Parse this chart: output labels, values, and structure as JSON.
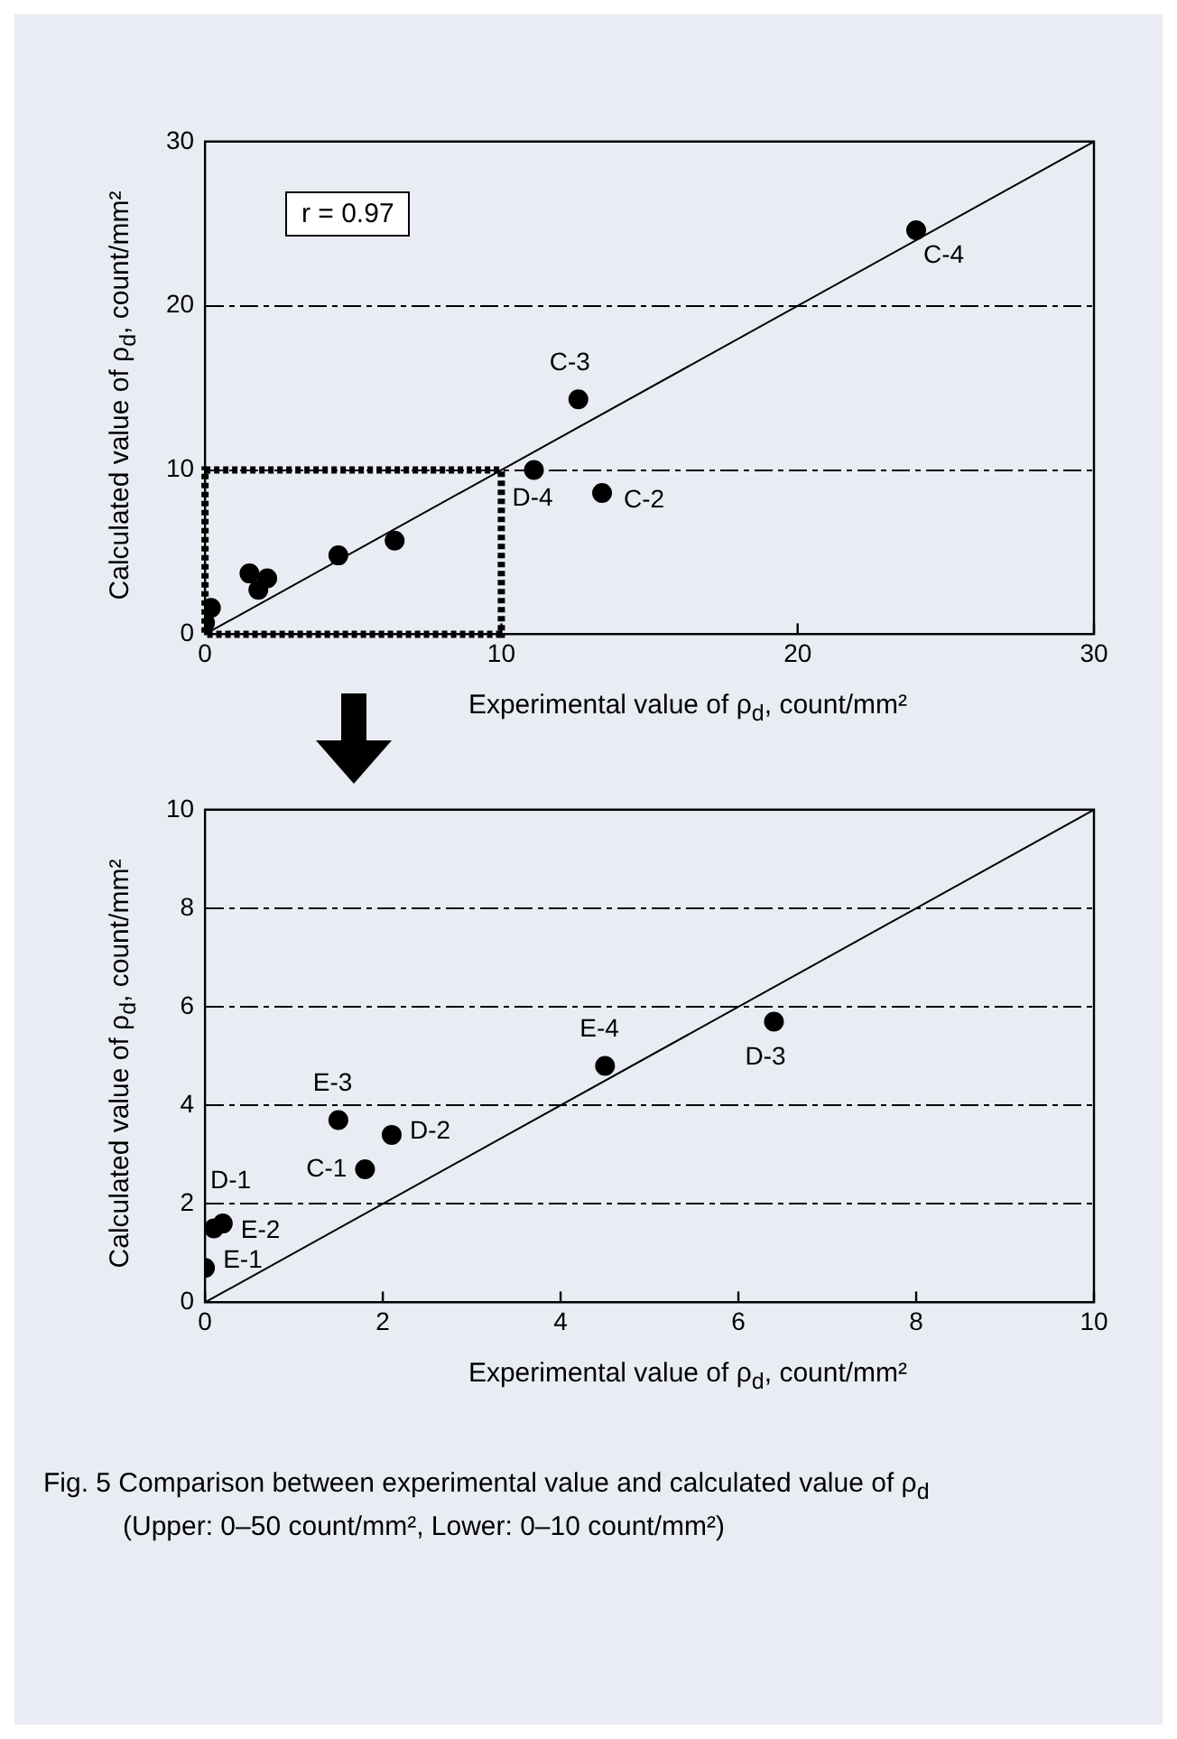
{
  "chart_data": [
    {
      "type": "scatter",
      "xlabel": "Experimental value of ρ$_{d}$, count/mm²",
      "ylabel": "Calculated value of ρ$_{d}$, count/mm²",
      "xlim": [
        0,
        30
      ],
      "ylim": [
        0,
        30
      ],
      "xticks": [
        0,
        10,
        20,
        30
      ],
      "yticks": [
        0,
        10,
        20,
        30
      ],
      "grid": "y",
      "legend": false,
      "marker": "circle",
      "series": [
        {
          "color": "#000000",
          "x": [
            0,
            0.2,
            1.8,
            1.5,
            2.1,
            4.5,
            6.4,
            11.1,
            13.4,
            12.6,
            24
          ],
          "values": [
            0.7,
            1.6,
            2.7,
            3.7,
            3.4,
            4.8,
            5.7,
            10,
            8.6,
            14.3,
            24.6
          ]
        },
        {
          "type": "line",
          "color": "#000000",
          "marker": "none",
          "x": [
            0,
            30
          ],
          "values": [
            0,
            30
          ]
        }
      ],
      "annotations": [
        "r = 0.97",
        {
          "text": "D-4",
          "x": 11.1,
          "y": 10
        },
        {
          "text": "C-2",
          "x": 13.4,
          "y": 8.6
        },
        {
          "text": "C-3",
          "x": 12.6,
          "y": 14.3
        },
        {
          "text": "C-4",
          "x": 24,
          "y": 24.6
        }
      ]
    },
    {
      "type": "scatter",
      "xlabel": "Experimental value of ρ$_{d}$, count/mm²",
      "ylabel": "Calculated value of ρ$_{d}$, count/mm²",
      "xlim": [
        0,
        10
      ],
      "ylim": [
        0,
        10
      ],
      "xticks": [
        0,
        2,
        4,
        6,
        8,
        10
      ],
      "yticks": [
        0,
        2,
        4,
        6,
        8,
        10
      ],
      "grid": "y",
      "legend": false,
      "marker": "circle",
      "series": [
        {
          "color": "#000000",
          "x": [
            0,
            0.1,
            0.2,
            1.8,
            1.5,
            2.1,
            4.5,
            6.4
          ],
          "values": [
            0.7,
            1.5,
            1.6,
            2.7,
            3.7,
            3.4,
            4.8,
            5.7
          ]
        },
        {
          "type": "line",
          "color": "#000000",
          "marker": "none",
          "x": [
            0,
            10
          ],
          "values": [
            0,
            10
          ]
        }
      ],
      "annotations": [
        {
          "text": "E-1",
          "x": 0,
          "y": 0.7
        },
        {
          "text": "D-1",
          "x": 0.1,
          "y": 1.5
        },
        {
          "text": "E-2",
          "x": 0.2,
          "y": 1.6
        },
        {
          "text": "C-1",
          "x": 1.8,
          "y": 2.7
        },
        {
          "text": "E-3",
          "x": 1.5,
          "y": 3.7
        },
        {
          "text": "D-2",
          "x": 2.1,
          "y": 3.4
        },
        {
          "text": "E-4",
          "x": 4.5,
          "y": 4.8
        },
        {
          "text": "D-3",
          "x": 6.4,
          "y": 5.7
        },
        "Fig. 5 Comparison between experimental value and calculated value of ρ$_{d}$",
        "(Upper: 0–50 count/mm², Lower: 0–10 count/mm²)"
      ]
    }
  ]
}
